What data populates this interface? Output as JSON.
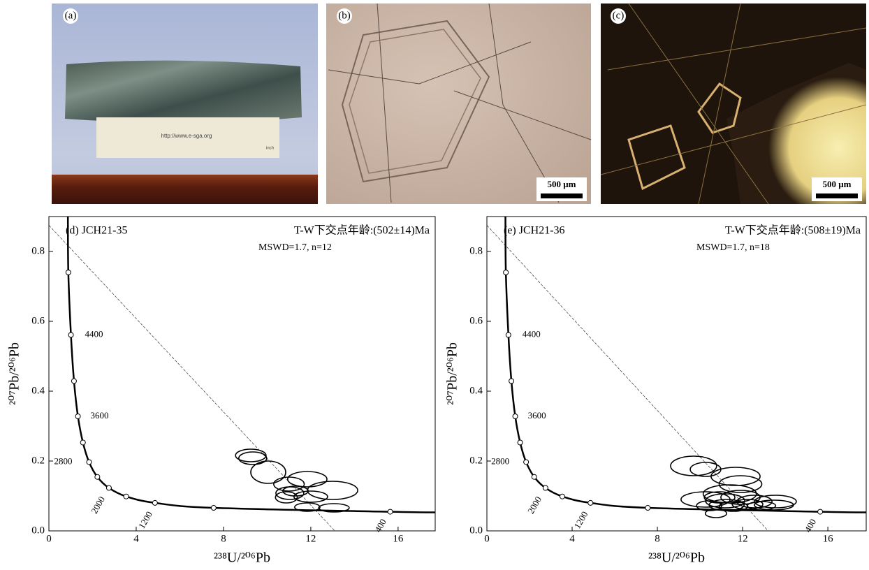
{
  "photos": [
    {
      "label": "(a)",
      "ruler_url": "http://www.e-sga.org",
      "ruler_unit": "inch"
    },
    {
      "label": "(b)",
      "scale": "500 μm"
    },
    {
      "label": "(c)",
      "scale": "500 μm"
    }
  ],
  "chart_data": [
    {
      "type": "concordia",
      "title": "(d) JCH21-35",
      "annotation": "T-W下交点年龄:(502±14)Ma",
      "stats": "MSWD=1.7, n=12",
      "x_label": "²³⁸U/²⁰⁶Pb",
      "y_label": "²⁰⁷Pb/²⁰⁶Pb",
      "xlim": [
        0,
        17.7
      ],
      "ylim": [
        0,
        0.9
      ],
      "xticks": [
        0,
        4,
        8,
        12,
        16
      ],
      "yticks": [
        {
          "value": 0,
          "label": "0.0"
        },
        0.2,
        0.4,
        0.6,
        0.8
      ],
      "curve": {
        "x": [
          0.87,
          0.89,
          1.01,
          1.15,
          1.33,
          1.56,
          1.84,
          2.22,
          2.75,
          3.54,
          4.86,
          7.55,
          15.64,
          17.7
        ],
        "y": [
          0.9,
          0.74,
          0.561,
          0.429,
          0.328,
          0.253,
          0.1971,
          0.1546,
          0.123,
          0.0986,
          0.0802,
          0.0659,
          0.0548,
          0.053
        ]
      },
      "points": {
        "x": [
          15.64,
          7.55,
          4.86,
          3.54,
          2.75,
          2.22,
          1.84,
          1.56,
          1.33,
          1.15,
          1.01,
          0.89
        ],
        "y": [
          0.0548,
          0.0659,
          0.0802,
          0.0986,
          0.123,
          0.1546,
          0.1971,
          0.253,
          0.328,
          0.429,
          0.561,
          0.74
        ],
        "labels": [
          "400",
          null,
          "1200",
          null,
          "2000",
          null,
          "2800",
          null,
          "3600",
          null,
          "4400",
          null
        ]
      },
      "discordia": {
        "x": [
          0,
          13.1
        ],
        "y": [
          0.875,
          0
        ]
      },
      "ellipses": {
        "x": [
          9.25,
          9.34,
          10.05,
          11.0,
          11.84,
          13.0,
          11.04,
          10.88,
          11.3,
          12.0,
          11.84,
          13.06
        ],
        "y": [
          0.216,
          0.208,
          0.168,
          0.134,
          0.148,
          0.116,
          0.108,
          0.096,
          0.114,
          0.098,
          0.068,
          0.066
        ],
        "rx": [
          0.7,
          0.64,
          0.8,
          0.7,
          0.9,
          1.15,
          0.64,
          0.5,
          0.58,
          0.77,
          0.58,
          0.7
        ],
        "ry": [
          0.018,
          0.018,
          0.032,
          0.02,
          0.022,
          0.026,
          0.018,
          0.016,
          0.014,
          0.016,
          0.012,
          0.012
        ]
      }
    },
    {
      "type": "concordia",
      "title": "(e) JCH21-36",
      "annotation": "T-W下交点年龄:(508±19)Ma",
      "stats": "MSWD=1.7, n=18",
      "x_label": "²³⁸U/²⁰⁶Pb",
      "y_label": "²⁰⁷Pb/²⁰⁶Pb",
      "xlim": [
        0,
        17.8
      ],
      "ylim": [
        0,
        0.9
      ],
      "xticks": [
        0,
        4,
        8,
        12,
        16
      ],
      "yticks": [
        {
          "value": 0,
          "label": "0.0"
        },
        0.2,
        0.4,
        0.6,
        0.8
      ],
      "curve": {
        "x": [
          0.87,
          0.89,
          1.01,
          1.15,
          1.33,
          1.56,
          1.84,
          2.22,
          2.75,
          3.54,
          4.86,
          7.55,
          15.64,
          17.8
        ],
        "y": [
          0.9,
          0.74,
          0.561,
          0.429,
          0.328,
          0.253,
          0.1971,
          0.1546,
          0.123,
          0.0986,
          0.0802,
          0.0659,
          0.0548,
          0.053
        ]
      },
      "points": {
        "x": [
          15.64,
          7.55,
          4.86,
          3.54,
          2.75,
          2.22,
          1.84,
          1.56,
          1.33,
          1.15,
          1.01,
          0.89
        ],
        "y": [
          0.0548,
          0.0659,
          0.0802,
          0.0986,
          0.123,
          0.1546,
          0.1971,
          0.253,
          0.328,
          0.429,
          0.561,
          0.74
        ],
        "labels": [
          "400",
          null,
          "1200",
          null,
          "2000",
          null,
          "2800",
          null,
          "3600",
          null,
          "4400",
          null
        ]
      },
      "discordia": {
        "x": [
          0,
          13.2
        ],
        "y": [
          0.875,
          0
        ]
      },
      "ellipses": {
        "x": [
          9.7,
          10.26,
          11.67,
          11.9,
          11.4,
          10.26,
          11.18,
          11.9,
          12.56,
          13.54,
          13.47,
          11.25,
          10.92,
          11.57,
          10.75,
          12.23,
          12.89,
          10.43
        ],
        "y": [
          0.186,
          0.176,
          0.156,
          0.134,
          0.106,
          0.09,
          0.086,
          0.096,
          0.084,
          0.084,
          0.074,
          0.074,
          0.096,
          0.07,
          0.05,
          0.076,
          0.072,
          0.072
        ],
        "rx": [
          1.08,
          0.72,
          1.15,
          1.0,
          1.25,
          1.15,
          0.92,
          0.92,
          0.82,
          0.98,
          0.92,
          0.82,
          0.72,
          0.66,
          0.5,
          0.72,
          0.66,
          0.59
        ],
        "ry": [
          0.028,
          0.02,
          0.026,
          0.024,
          0.026,
          0.022,
          0.02,
          0.02,
          0.018,
          0.018,
          0.014,
          0.016,
          0.016,
          0.014,
          0.012,
          0.014,
          0.012,
          0.014
        ]
      }
    }
  ]
}
